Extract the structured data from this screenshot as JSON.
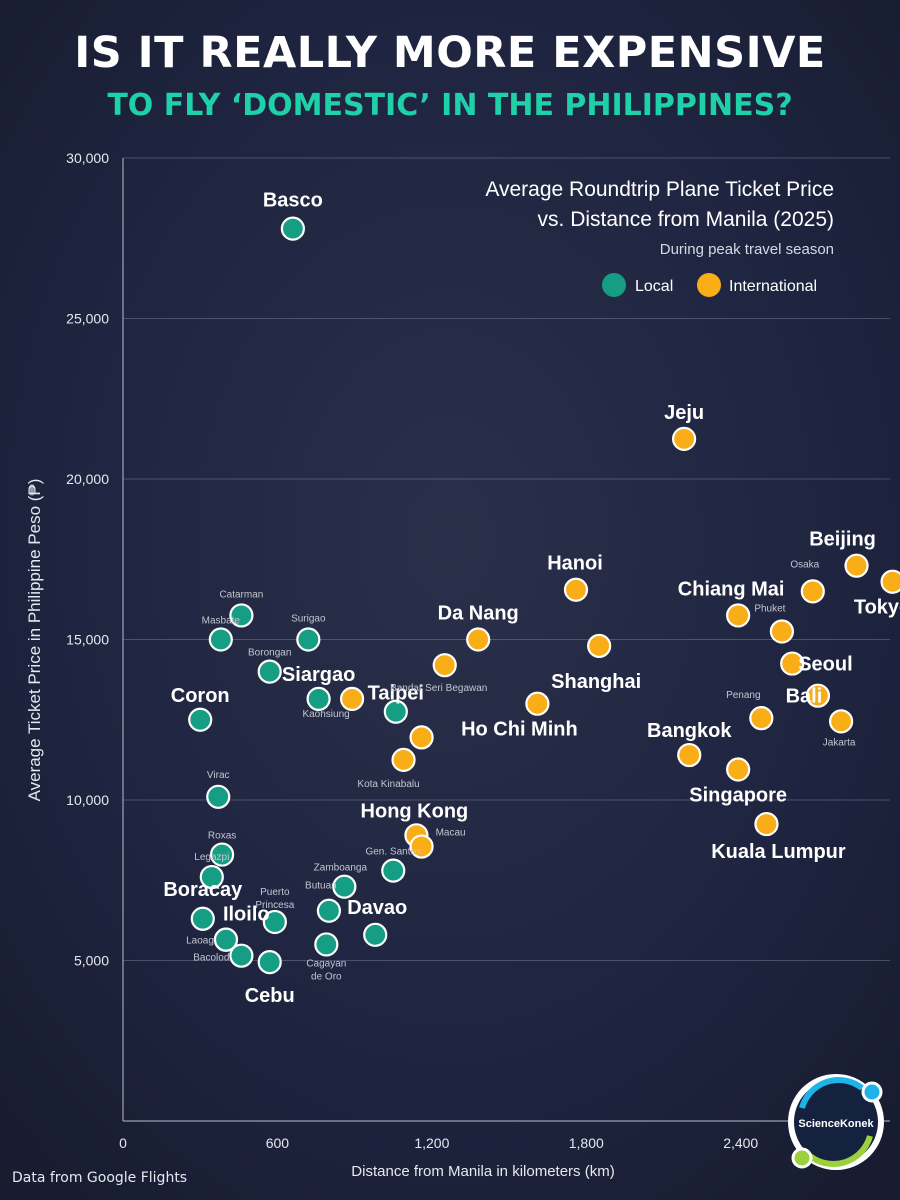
{
  "header": {
    "title": "IS IT REALLY MORE EXPENSIVE",
    "subtitle": "TO FLY ‘DOMESTIC’ IN THE PHILIPPINES?"
  },
  "footer": {
    "source": "Data from Google Flights"
  },
  "logo": {
    "text": "ScienceKonek"
  },
  "colors": {
    "local": "#169e84",
    "international": "#f9ad17",
    "background": "#1c2238",
    "accent": "#1fd1a8"
  },
  "chart_data": {
    "type": "scatter",
    "title": "Average Roundtrip Plane Ticket Price",
    "title2": "vs. Distance from Manila (2025)",
    "subtitle": "During peak travel season",
    "xlabel": "Distance from Manila in kilometers (km)",
    "ylabel": "Average Ticket Price in Philippine Peso (₱)",
    "xlim": [
      0,
      2980
    ],
    "ylim": [
      0,
      30000
    ],
    "xticks": [
      0,
      600,
      1200,
      1800,
      2400
    ],
    "xtick_labels": [
      "0",
      "600",
      "1,200",
      "1,800",
      "2,400"
    ],
    "yticks": [
      5000,
      10000,
      15000,
      20000,
      25000,
      30000
    ],
    "ytick_labels": [
      "5,000",
      "10,000",
      "15,000",
      "20,000",
      "25,000",
      "30,000"
    ],
    "legend": [
      {
        "name": "Local",
        "color": "#169e84"
      },
      {
        "name": "International",
        "color": "#f9ad17"
      }
    ],
    "series": [
      {
        "name": "Local",
        "points": [
          {
            "label": "Basco",
            "x": 660,
            "y": 27800
          },
          {
            "label": "Catarman",
            "x": 460,
            "y": 15750
          },
          {
            "label": "Masbate",
            "x": 380,
            "y": 15000
          },
          {
            "label": "Surigao",
            "x": 720,
            "y": 15000
          },
          {
            "label": "Borongan",
            "x": 570,
            "y": 14000
          },
          {
            "label": "Siargao",
            "x": 760,
            "y": 13150
          },
          {
            "label": "Coron",
            "x": 300,
            "y": 12500
          },
          {
            "label": "Taipei",
            "x": 1060,
            "y": 12750
          },
          {
            "label": "Virac",
            "x": 370,
            "y": 10100
          },
          {
            "label": "Roxas",
            "x": 385,
            "y": 8300
          },
          {
            "label": "Gen. Santos",
            "x": 1050,
            "y": 7800
          },
          {
            "label": "Legazpi",
            "x": 345,
            "y": 7600
          },
          {
            "label": "Zamboanga",
            "x": 860,
            "y": 7300
          },
          {
            "label": "Puerto Princesa",
            "x": 590,
            "y": 6200
          },
          {
            "label": "Butuan",
            "x": 800,
            "y": 6550
          },
          {
            "label": "Boracay",
            "x": 310,
            "y": 6300
          },
          {
            "label": "Iloilo",
            "x": 400,
            "y": 5650
          },
          {
            "label": "Laoag",
            "x": 400,
            "y": 5650
          },
          {
            "label": "Bacolod",
            "x": 460,
            "y": 5150
          },
          {
            "label": "Cagayan de Oro",
            "x": 790,
            "y": 5500
          },
          {
            "label": "Davao",
            "x": 980,
            "y": 5800
          },
          {
            "label": "Cebu",
            "x": 570,
            "y": 4950
          }
        ]
      },
      {
        "name": "International",
        "points": [
          {
            "label": "Jeju",
            "x": 2180,
            "y": 21250
          },
          {
            "label": "Beijing",
            "x": 2850,
            "y": 17300
          },
          {
            "label": "Tokyo",
            "x": 2990,
            "y": 16800
          },
          {
            "label": "Hanoi",
            "x": 1760,
            "y": 16550
          },
          {
            "label": "Osaka",
            "x": 2680,
            "y": 16500
          },
          {
            "label": "Chiang Mai",
            "x": 2390,
            "y": 15750
          },
          {
            "label": "Phuket",
            "x": 2560,
            "y": 15250
          },
          {
            "label": "Da Nang",
            "x": 1380,
            "y": 15000
          },
          {
            "label": "Shanghai",
            "x": 1850,
            "y": 14800
          },
          {
            "label": "Seoul",
            "x": 2600,
            "y": 14250
          },
          {
            "label": "Bandar Seri Begawan",
            "x": 1250,
            "y": 14200
          },
          {
            "label": "Bali",
            "x": 2700,
            "y": 13250
          },
          {
            "label": "Kaohsiung",
            "x": 890,
            "y": 13150
          },
          {
            "label": "Ho Chi Minh",
            "x": 1610,
            "y": 13000
          },
          {
            "label": "Penang",
            "x": 2480,
            "y": 12550
          },
          {
            "label": "Jakarta",
            "x": 2790,
            "y": 12450
          },
          {
            "label": "Taipei",
            "x": 1160,
            "y": 11950
          },
          {
            "label": "Bangkok",
            "x": 2200,
            "y": 11400
          },
          {
            "label": "Kota Kinabalu",
            "x": 1090,
            "y": 11250
          },
          {
            "label": "Singapore",
            "x": 2390,
            "y": 10950
          },
          {
            "label": "Kuala Lumpur",
            "x": 2500,
            "y": 9250
          },
          {
            "label": "Hong Kong",
            "x": 1140,
            "y": 8900
          },
          {
            "label": "Macau",
            "x": 1160,
            "y": 8550
          }
        ]
      }
    ]
  }
}
